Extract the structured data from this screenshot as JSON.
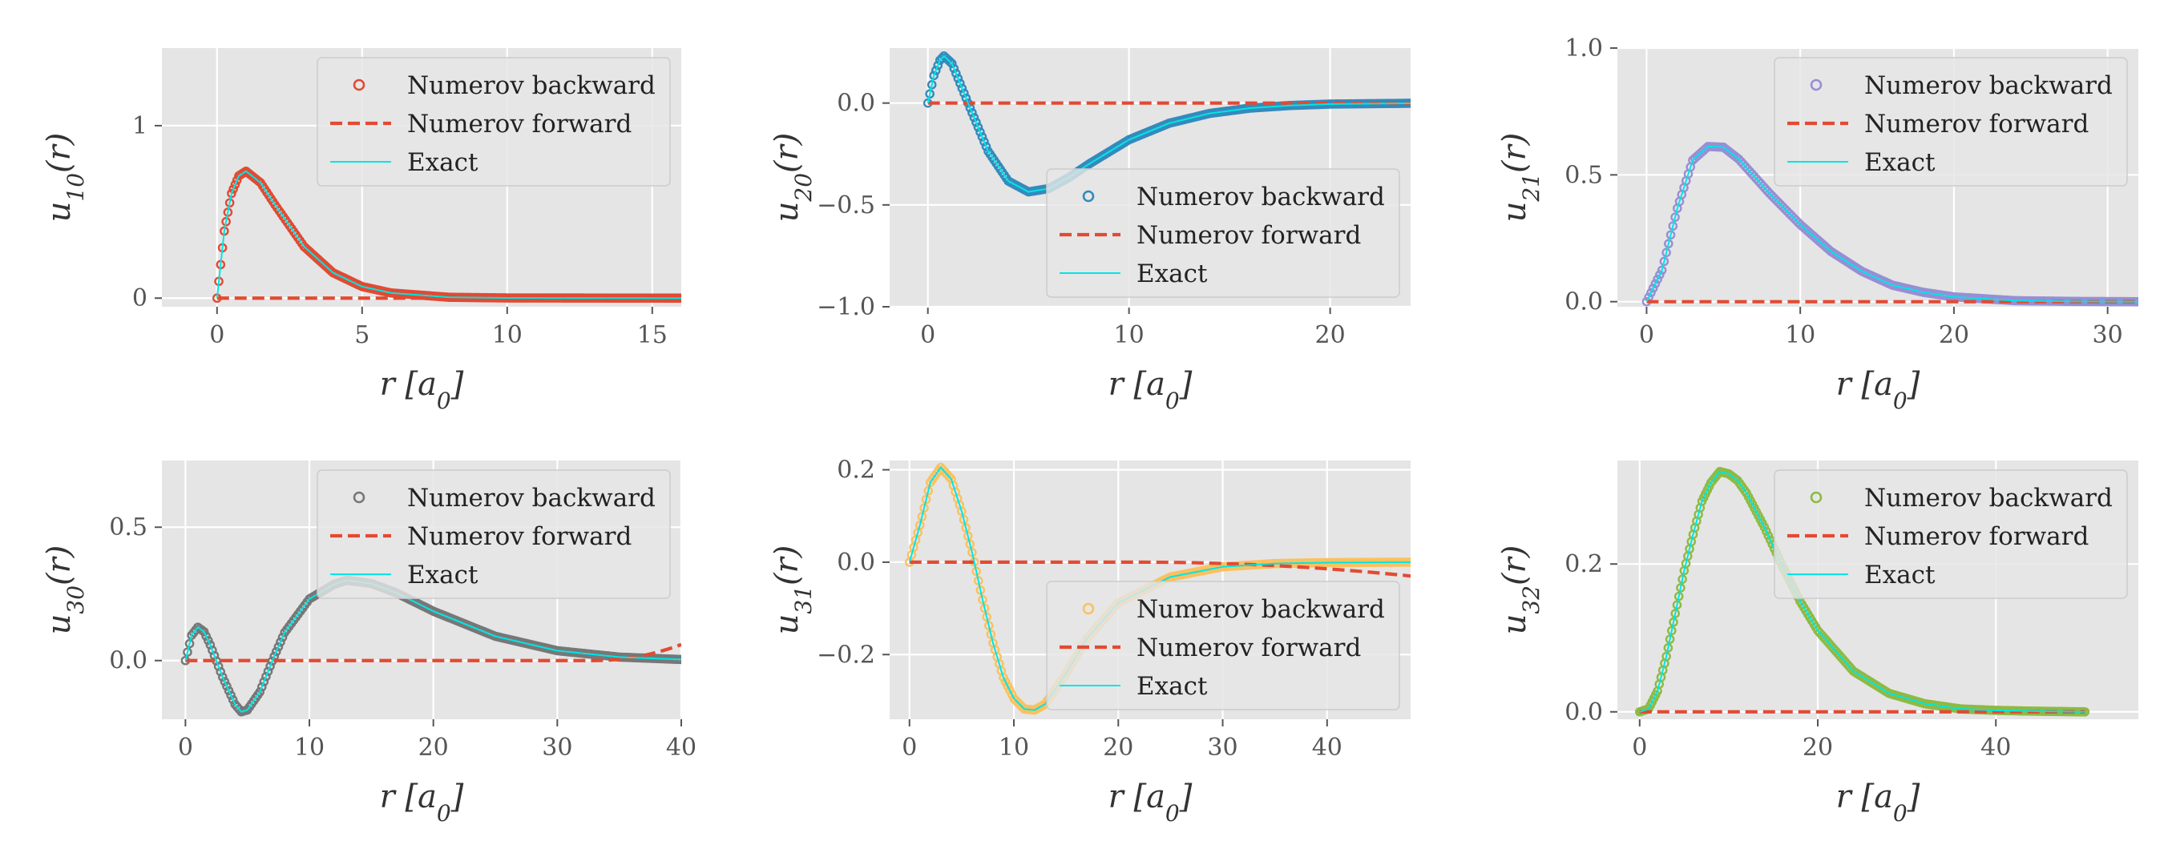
{
  "chart_data": [
    {
      "type": "line",
      "state": "10",
      "xlabel": "r [a₀]",
      "ylabel": "u₁₀(r)",
      "xlim": [
        -1.9,
        16
      ],
      "ylim": [
        -0.05,
        1.45
      ],
      "xticks": [
        0,
        5,
        10,
        15
      ],
      "xtick_labels": [
        "0",
        "5",
        "10",
        "15"
      ],
      "yticks": [
        0,
        1
      ],
      "ytick_labels": [
        "0",
        "1"
      ],
      "r_max": 16,
      "grid": true,
      "legend_position": "top-right",
      "marker_color": "#e24a33",
      "series": [
        {
          "name": "Numerov backward",
          "style": "circle-markers"
        },
        {
          "name": "Numerov forward",
          "style": "dashed"
        },
        {
          "name": "Exact",
          "style": "solid"
        }
      ],
      "forward_tail": {
        "start_r": 16,
        "end_value": 0
      },
      "points_exact": [
        [
          0,
          0
        ],
        [
          0.25,
          0.389
        ],
        [
          0.5,
          0.607
        ],
        [
          0.75,
          0.709
        ],
        [
          1,
          0.736
        ],
        [
          1.5,
          0.669
        ],
        [
          2,
          0.541
        ],
        [
          3,
          0.299
        ],
        [
          4,
          0.147
        ],
        [
          5,
          0.067
        ],
        [
          6,
          0.03
        ],
        [
          8,
          0.005
        ],
        [
          10,
          0.001
        ],
        [
          16,
          0
        ]
      ]
    },
    {
      "type": "line",
      "state": "20",
      "xlabel": "r [a₀]",
      "ylabel": "u₂₀(r)",
      "xlim": [
        -1.9,
        24
      ],
      "ylim": [
        -1.0,
        0.27
      ],
      "xticks": [
        0,
        10,
        20
      ],
      "xtick_labels": [
        "0",
        "10",
        "20"
      ],
      "yticks": [
        -1.0,
        -0.5,
        0.0
      ],
      "ytick_labels": [
        "−1.0",
        "−0.5",
        "0.0"
      ],
      "r_max": 24,
      "grid": true,
      "legend_position": "bottom-right",
      "marker_color": "#348abd",
      "series": [
        {
          "name": "Numerov backward",
          "style": "circle-markers"
        },
        {
          "name": "Numerov forward",
          "style": "dashed"
        },
        {
          "name": "Exact",
          "style": "solid"
        }
      ],
      "forward_tail": {
        "start_r": 24,
        "end_value": 0
      },
      "points_exact": [
        [
          0,
          0
        ],
        [
          0.3,
          0.135
        ],
        [
          0.6,
          0.21
        ],
        [
          0.8,
          0.231
        ],
        [
          1.2,
          0.194
        ],
        [
          2,
          0
        ],
        [
          3,
          -0.237
        ],
        [
          4,
          -0.383
        ],
        [
          5,
          -0.436
        ],
        [
          6,
          -0.42
        ],
        [
          7,
          -0.366
        ],
        [
          8,
          -0.3
        ],
        [
          10,
          -0.18
        ],
        [
          12,
          -0.099
        ],
        [
          14,
          -0.051
        ],
        [
          16,
          -0.025
        ],
        [
          18,
          -0.012
        ],
        [
          20,
          -0.005
        ],
        [
          24,
          -0.001
        ]
      ]
    },
    {
      "type": "line",
      "state": "21",
      "xlabel": "r [a₀]",
      "ylabel": "u₂₁(r)",
      "xlim": [
        -1.9,
        32
      ],
      "ylim": [
        -0.02,
        1.0
      ],
      "xticks": [
        0,
        10,
        20,
        30
      ],
      "xtick_labels": [
        "0",
        "10",
        "20",
        "30"
      ],
      "yticks": [
        0.0,
        0.5,
        1.0
      ],
      "ytick_labels": [
        "0.0",
        "0.5",
        "1.0"
      ],
      "r_max": 32,
      "grid": true,
      "legend_position": "top-right",
      "marker_color": "#988ed5",
      "series": [
        {
          "name": "Numerov backward",
          "style": "circle-markers"
        },
        {
          "name": "Numerov forward",
          "style": "dashed"
        },
        {
          "name": "Exact",
          "style": "solid"
        }
      ],
      "forward_tail": {
        "start_r": 32,
        "end_value": 0
      },
      "points_exact": [
        [
          0,
          0
        ],
        [
          1,
          0.124
        ],
        [
          2,
          0.368
        ],
        [
          3,
          0.558
        ],
        [
          4,
          0.612
        ],
        [
          5,
          0.609
        ],
        [
          6,
          0.562
        ],
        [
          8,
          0.427
        ],
        [
          10,
          0.304
        ],
        [
          12,
          0.198
        ],
        [
          14,
          0.12
        ],
        [
          16,
          0.065
        ],
        [
          18,
          0.037
        ],
        [
          20,
          0.019
        ],
        [
          24,
          0.004
        ],
        [
          28,
          0.001
        ],
        [
          32,
          0
        ]
      ]
    },
    {
      "type": "line",
      "state": "30",
      "xlabel": "r [a₀]",
      "ylabel": "u₃₀(r)",
      "xlim": [
        -1.9,
        40
      ],
      "ylim": [
        -0.22,
        0.75
      ],
      "xticks": [
        0,
        10,
        20,
        30,
        40
      ],
      "xtick_labels": [
        "0",
        "10",
        "20",
        "30",
        "40"
      ],
      "yticks": [
        0.0,
        0.5
      ],
      "ytick_labels": [
        "0.0",
        "0.5"
      ],
      "r_max": 40,
      "grid": true,
      "legend_position": "top-right",
      "marker_color": "#777777",
      "series": [
        {
          "name": "Numerov backward",
          "style": "circle-markers"
        },
        {
          "name": "Numerov forward",
          "style": "dashed"
        },
        {
          "name": "Exact",
          "style": "solid"
        }
      ],
      "forward_tail": {
        "start_r": 33,
        "end_value": 0.06
      },
      "points_exact": [
        [
          0,
          0
        ],
        [
          0.5,
          0.095
        ],
        [
          1,
          0.125
        ],
        [
          1.5,
          0.108
        ],
        [
          2,
          0.059
        ],
        [
          3,
          -0.062
        ],
        [
          4,
          -0.164
        ],
        [
          4.5,
          -0.192
        ],
        [
          5,
          -0.185
        ],
        [
          6,
          -0.118
        ],
        [
          7,
          -0.002
        ],
        [
          8,
          0.105
        ],
        [
          10,
          0.231
        ],
        [
          12,
          0.286
        ],
        [
          13,
          0.301
        ],
        [
          15,
          0.289
        ],
        [
          17,
          0.254
        ],
        [
          20,
          0.185
        ],
        [
          25,
          0.091
        ],
        [
          30,
          0.037
        ],
        [
          35,
          0.013
        ],
        [
          40,
          0.004
        ]
      ]
    },
    {
      "type": "line",
      "state": "31",
      "xlabel": "r [a₀]",
      "ylabel": "u₃₁(r)",
      "xlim": [
        -1.9,
        48
      ],
      "ylim": [
        -0.34,
        0.22
      ],
      "xticks": [
        0,
        10,
        20,
        30,
        40
      ],
      "xtick_labels": [
        "0",
        "10",
        "20",
        "30",
        "40"
      ],
      "yticks": [
        -0.2,
        0.0,
        0.2
      ],
      "ytick_labels": [
        "−0.2",
        "0.0",
        "0.2"
      ],
      "r_max": 48,
      "grid": true,
      "legend_position": "bottom-right",
      "marker_color": "#fbc15e",
      "series": [
        {
          "name": "Numerov backward",
          "style": "circle-markers"
        },
        {
          "name": "Numerov forward",
          "style": "dashed"
        },
        {
          "name": "Exact",
          "style": "solid"
        }
      ],
      "forward_tail": {
        "start_r": 22,
        "end_value": -0.03
      },
      "points_exact": [
        [
          0,
          0
        ],
        [
          1,
          0.08
        ],
        [
          2,
          0.173
        ],
        [
          3,
          0.205
        ],
        [
          4,
          0.18
        ],
        [
          5,
          0.11
        ],
        [
          6,
          0.021
        ],
        [
          7,
          -0.081
        ],
        [
          8,
          -0.175
        ],
        [
          9,
          -0.25
        ],
        [
          10,
          -0.295
        ],
        [
          11,
          -0.318
        ],
        [
          12,
          -0.32
        ],
        [
          13,
          -0.307
        ],
        [
          15,
          -0.241
        ],
        [
          17,
          -0.165
        ],
        [
          20,
          -0.088
        ],
        [
          25,
          -0.032
        ],
        [
          30,
          -0.01
        ],
        [
          35,
          -0.003
        ],
        [
          40,
          -0.001
        ],
        [
          48,
          0
        ]
      ]
    },
    {
      "type": "line",
      "state": "32",
      "xlabel": "r [a₀]",
      "ylabel": "u₃₂(r)",
      "xlim": [
        -2.5,
        56
      ],
      "ylim": [
        -0.01,
        0.34
      ],
      "xticks": [
        0,
        20,
        40
      ],
      "xtick_labels": [
        "0",
        "20",
        "40"
      ],
      "yticks": [
        0.0,
        0.2
      ],
      "ytick_labels": [
        "0.0",
        "0.2"
      ],
      "r_max": 50,
      "grid": true,
      "legend_position": "top-right",
      "marker_color": "#8eba42",
      "series": [
        {
          "name": "Numerov backward",
          "style": "circle-markers"
        },
        {
          "name": "Numerov forward",
          "style": "dashed"
        },
        {
          "name": "Exact",
          "style": "solid"
        }
      ],
      "forward_tail": {
        "start_r": 50,
        "end_value": 0
      },
      "points_exact": [
        [
          0,
          0
        ],
        [
          1,
          0.004
        ],
        [
          2,
          0.028
        ],
        [
          3,
          0.075
        ],
        [
          4,
          0.133
        ],
        [
          5,
          0.191
        ],
        [
          6,
          0.24
        ],
        [
          7,
          0.285
        ],
        [
          8,
          0.31
        ],
        [
          9,
          0.325
        ],
        [
          10,
          0.322
        ],
        [
          11,
          0.313
        ],
        [
          12,
          0.296
        ],
        [
          14,
          0.25
        ],
        [
          16,
          0.198
        ],
        [
          18,
          0.15
        ],
        [
          20,
          0.11
        ],
        [
          24,
          0.055
        ],
        [
          28,
          0.025
        ],
        [
          32,
          0.011
        ],
        [
          36,
          0.004
        ],
        [
          40,
          0.002
        ],
        [
          44,
          0.001
        ],
        [
          50,
          0
        ]
      ]
    }
  ]
}
